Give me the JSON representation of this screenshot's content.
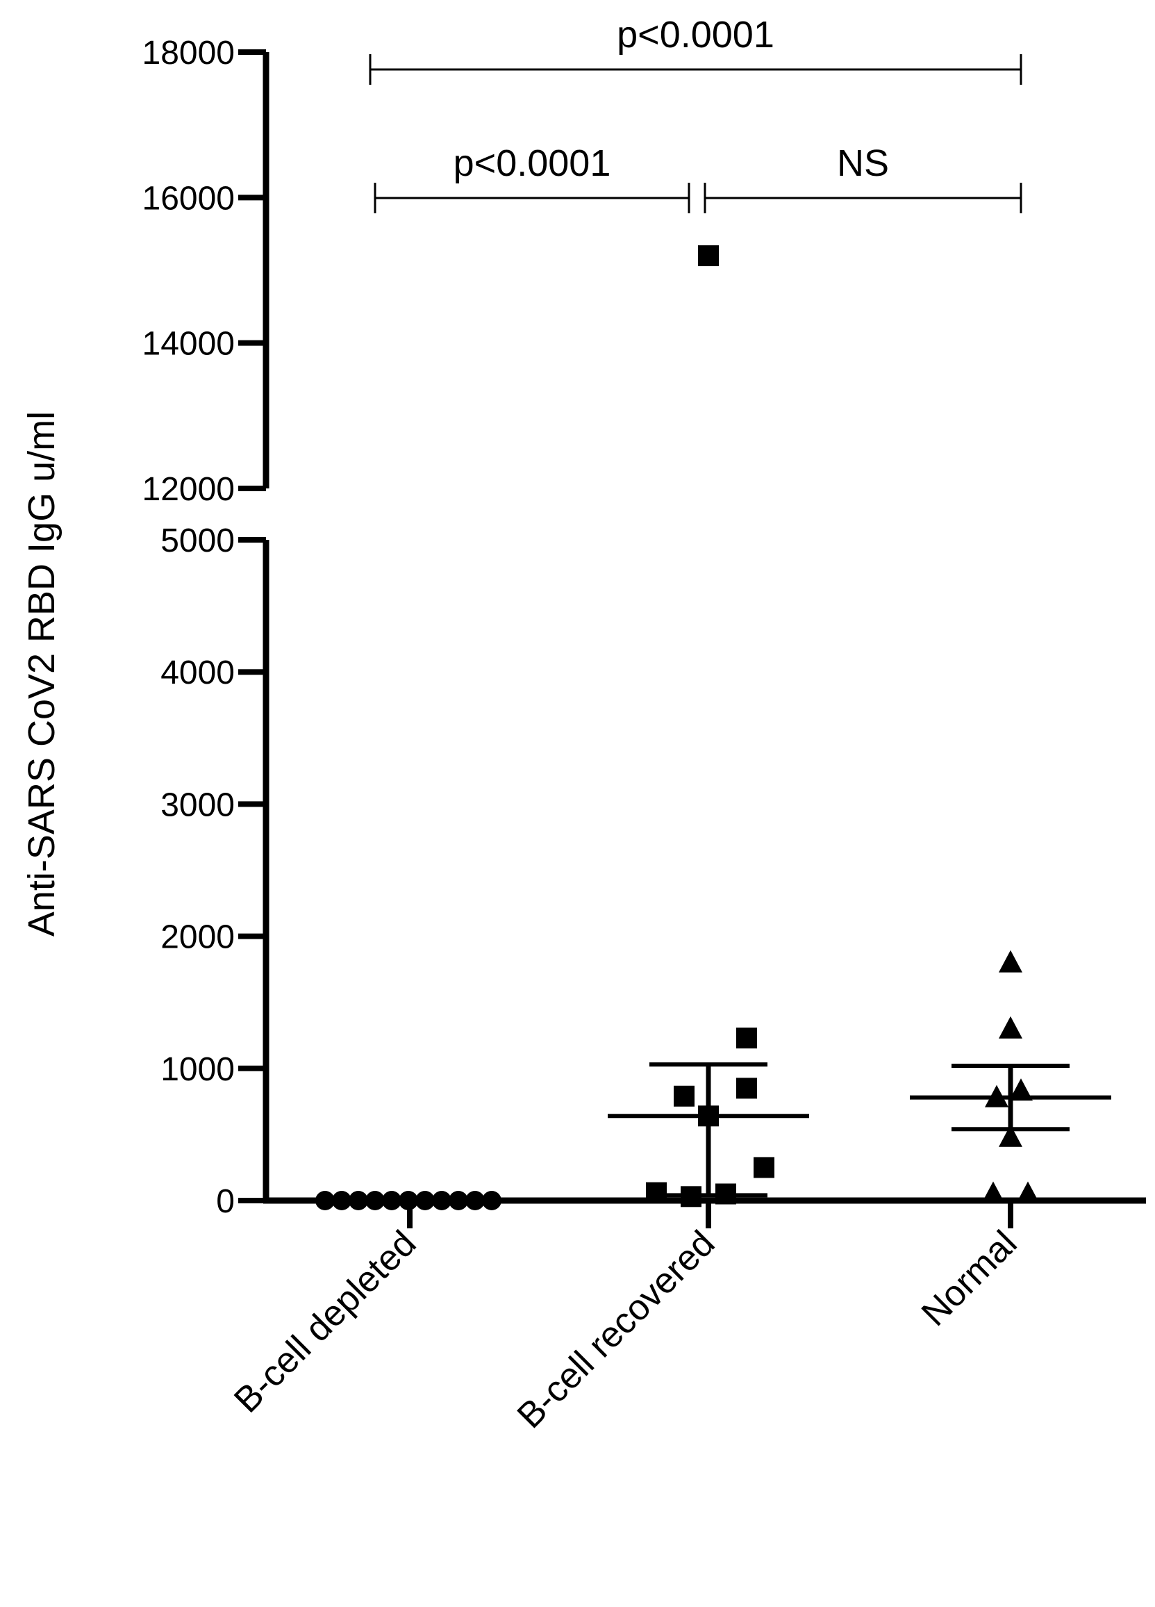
{
  "chart_data": {
    "type": "scatter",
    "title": "",
    "xlabel": "",
    "ylabel": "Anti-SARS CoV2 RBD IgG u/ml",
    "y_axis_break": {
      "lower_range": [
        0,
        5000
      ],
      "upper_range": [
        12000,
        18000
      ]
    },
    "yticks_lower": [
      "0",
      "1000",
      "2000",
      "3000",
      "4000",
      "5000"
    ],
    "yticks_upper": [
      "12000",
      "14000",
      "16000",
      "18000"
    ],
    "categories": [
      "B-cell depleted",
      "B-cell recovered",
      "Normal"
    ],
    "colors": {
      "marker": "#000000",
      "line": "#000000"
    },
    "series": [
      {
        "category": "B-cell depleted",
        "marker": "circle",
        "values": [
          0,
          0,
          0,
          0,
          0,
          0,
          0,
          0,
          0,
          0,
          0
        ],
        "mean": 0
      },
      {
        "category": "B-cell recovered",
        "marker": "square",
        "values": [
          15200,
          1230,
          790,
          850,
          640,
          250,
          60,
          30,
          50
        ],
        "mean": 640,
        "error_bar": [
          40,
          1030
        ]
      },
      {
        "category": "Normal",
        "marker": "triangle",
        "values": [
          1800,
          1300,
          830,
          780,
          480,
          50,
          50
        ],
        "mean": 780,
        "error_bar": [
          540,
          1020
        ]
      }
    ],
    "annotations": [
      {
        "from": "B-cell depleted",
        "to": "Normal",
        "label": "p<0.0001"
      },
      {
        "from": "B-cell depleted",
        "to": "B-cell recovered",
        "label": "p<0.0001"
      },
      {
        "from": "B-cell recovered",
        "to": "Normal",
        "label": "NS"
      }
    ]
  }
}
